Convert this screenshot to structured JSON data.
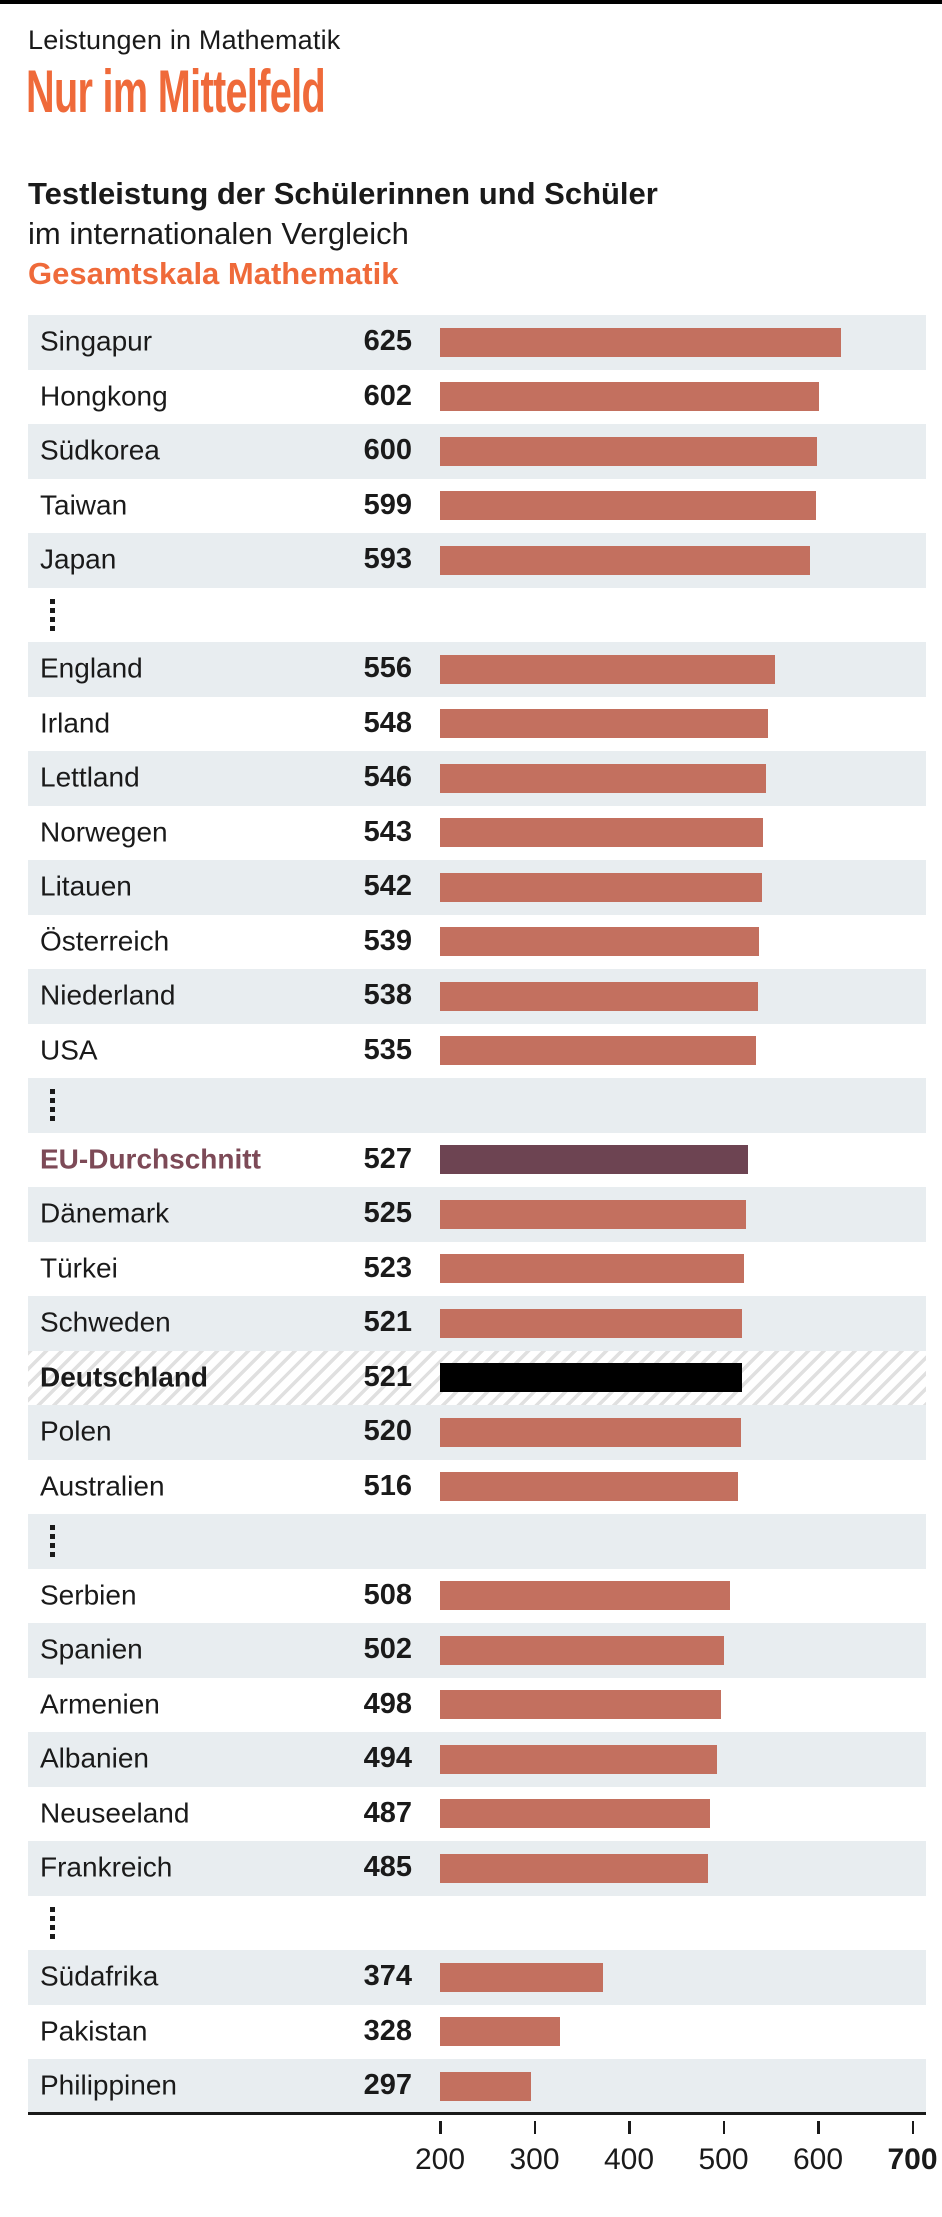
{
  "header": {
    "kicker": "Leistungen in Mathematik",
    "title": "Nur im Mittelfeld",
    "subtitle_bold": "Testleistung der Schülerinnen und Schüler",
    "subtitle_regular": "im internationalen Vergleich",
    "subtitle_accent": "Gesamtskala Mathematik"
  },
  "colors": {
    "accent_orange": "#ef6a3a",
    "bar_default": "#c3705f",
    "bar_eu": "#6d4452",
    "bar_germany": "#000000",
    "eu_label_color": "#7d4a57",
    "row_alt_bg": "#e8edf0",
    "text": "#1a1a1a"
  },
  "chart_data": {
    "type": "bar",
    "orientation": "horizontal",
    "title": "Nur im Mittelfeld",
    "subtitle": "Testleistung der Schülerinnen und Schüler im internationalen Vergleich",
    "scale_label": "Gesamtskala Mathematik",
    "xlim": [
      200,
      700
    ],
    "x_ticks": [
      200,
      300,
      400,
      500,
      600,
      700
    ],
    "bold_tick": 700,
    "grid": false,
    "legend": false,
    "rows": [
      {
        "kind": "country",
        "label": "Singapur",
        "value": 625
      },
      {
        "kind": "country",
        "label": "Hongkong",
        "value": 602
      },
      {
        "kind": "country",
        "label": "Südkorea",
        "value": 600
      },
      {
        "kind": "country",
        "label": "Taiwan",
        "value": 599
      },
      {
        "kind": "country",
        "label": "Japan",
        "value": 593
      },
      {
        "kind": "ellipsis"
      },
      {
        "kind": "country",
        "label": "England",
        "value": 556
      },
      {
        "kind": "country",
        "label": "Irland",
        "value": 548
      },
      {
        "kind": "country",
        "label": "Lettland",
        "value": 546
      },
      {
        "kind": "country",
        "label": "Norwegen",
        "value": 543
      },
      {
        "kind": "country",
        "label": "Litauen",
        "value": 542
      },
      {
        "kind": "country",
        "label": "Österreich",
        "value": 539
      },
      {
        "kind": "country",
        "label": "Niederland",
        "value": 538
      },
      {
        "kind": "country",
        "label": "USA",
        "value": 535
      },
      {
        "kind": "ellipsis"
      },
      {
        "kind": "eu",
        "label": "EU-Durchschnitt",
        "value": 527
      },
      {
        "kind": "country",
        "label": "Dänemark",
        "value": 525
      },
      {
        "kind": "country",
        "label": "Türkei",
        "value": 523
      },
      {
        "kind": "country",
        "label": "Schweden",
        "value": 521
      },
      {
        "kind": "germany",
        "label": "Deutschland",
        "value": 521
      },
      {
        "kind": "country",
        "label": "Polen",
        "value": 520
      },
      {
        "kind": "country",
        "label": "Australien",
        "value": 516
      },
      {
        "kind": "ellipsis"
      },
      {
        "kind": "country",
        "label": "Serbien",
        "value": 508
      },
      {
        "kind": "country",
        "label": "Spanien",
        "value": 502
      },
      {
        "kind": "country",
        "label": "Armenien",
        "value": 498
      },
      {
        "kind": "country",
        "label": "Albanien",
        "value": 494
      },
      {
        "kind": "country",
        "label": "Neuseeland",
        "value": 487
      },
      {
        "kind": "country",
        "label": "Frankreich",
        "value": 485
      },
      {
        "kind": "ellipsis"
      },
      {
        "kind": "country",
        "label": "Südafrika",
        "value": 374
      },
      {
        "kind": "country",
        "label": "Pakistan",
        "value": 328
      },
      {
        "kind": "country",
        "label": "Philippinen",
        "value": 297
      }
    ]
  }
}
